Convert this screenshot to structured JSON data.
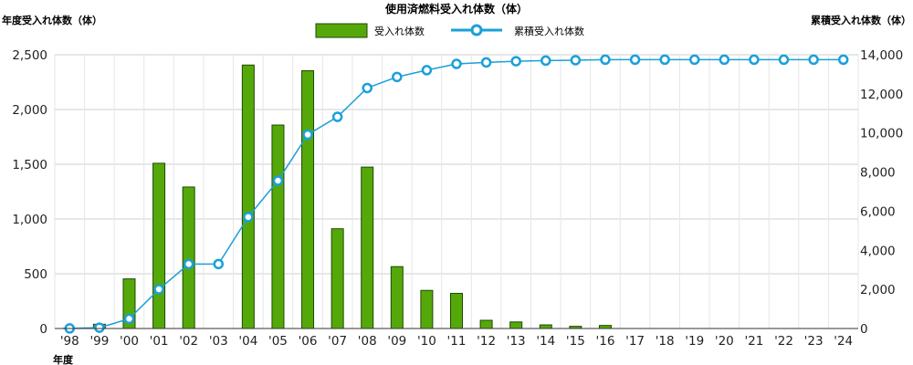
{
  "chart_data": {
    "type": "bar",
    "title": "使用済燃料受入れ体数（体）",
    "ylabel_left": "年度受入れ体数（体）",
    "ylabel_right": "累積受入れ体数（体）",
    "xlabel": "年度",
    "categories": [
      "'98",
      "'99",
      "'00",
      "'01",
      "'02",
      "'03",
      "'04",
      "'05",
      "'06",
      "'07",
      "'08",
      "'09",
      "'10",
      "'11",
      "'12",
      "'13",
      "'14",
      "'15",
      "'16",
      "'17",
      "'18",
      "'19",
      "'20",
      "'21",
      "'22",
      "'23",
      "'24"
    ],
    "series": [
      {
        "name": "受入れ体数",
        "type": "bar",
        "axis": "left",
        "color": "#55a80a",
        "values": [
          3,
          39,
          453,
          1509,
          1292,
          0,
          2406,
          1858,
          2354,
          911,
          1474,
          565,
          348,
          321,
          75,
          60,
          33,
          20,
          28,
          0,
          0,
          0,
          0,
          0,
          0,
          0,
          0
        ]
      },
      {
        "name": "累積受入れ体数",
        "type": "line",
        "axis": "right",
        "color": "#1aa0d8",
        "values": [
          3,
          42,
          495,
          2004,
          3296,
          3296,
          5702,
          7560,
          9914,
          10825,
          12299,
          12864,
          13212,
          13533,
          13608,
          13668,
          13701,
          13721,
          13749,
          13749,
          13749,
          13749,
          13749,
          13749,
          13749,
          13749,
          13749
        ]
      }
    ],
    "ylim_left": [
      0,
      2500
    ],
    "yticks_left": [
      "0",
      "500",
      "1,000",
      "1,500",
      "2,000",
      "2,500"
    ],
    "ylim_right": [
      0,
      14000
    ],
    "yticks_right": [
      "0",
      "2,000",
      "4,000",
      "6,000",
      "8,000",
      "10,000",
      "12,000",
      "14,000"
    ],
    "grid": true,
    "legend": "top-center"
  }
}
